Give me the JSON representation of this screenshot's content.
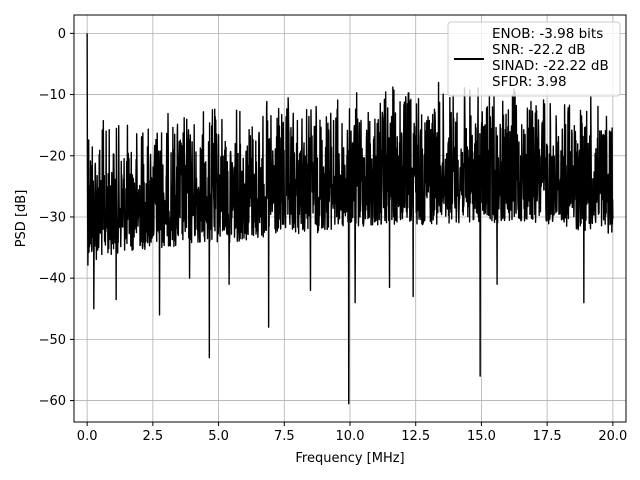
{
  "chart_data": {
    "type": "line",
    "xlabel": "Frequency [MHz]",
    "ylabel": "PSD [dB]",
    "xlim": [
      -0.5,
      20.5
    ],
    "ylim": [
      -63.5,
      3.0
    ],
    "xticks": [
      0.0,
      2.5,
      5.0,
      7.5,
      10.0,
      12.5,
      15.0,
      17.5,
      20.0
    ],
    "xtick_labels": [
      "0.0",
      "2.5",
      "5.0",
      "7.5",
      "10.0",
      "12.5",
      "15.0",
      "17.5",
      "20.0"
    ],
    "yticks": [
      0,
      -10,
      -20,
      -30,
      -40,
      -50,
      -60
    ],
    "ytick_labels": [
      "0",
      "−10",
      "−20",
      "−30",
      "−40",
      "−50",
      "−60"
    ],
    "grid": true,
    "legend_position": "top-right",
    "legend": [
      "ENOB: -3.98 bits",
      "SNR: -22.2 dB",
      "SINAD: -22.22 dB",
      "SFDR: 3.98"
    ],
    "line_color": "#000000",
    "series": [
      {
        "x_start": 0.0,
        "x_end": 20.0,
        "envelope_upper": [
          [
            0.0,
            0.0
          ],
          [
            0.05,
            -4.0
          ],
          [
            0.1,
            -9.0
          ],
          [
            0.3,
            -12.0
          ],
          [
            1.0,
            -14.0
          ],
          [
            3.0,
            -12.0
          ],
          [
            5.0,
            -11.0
          ],
          [
            8.0,
            -10.0
          ],
          [
            10.0,
            -9.0
          ],
          [
            12.5,
            -7.0
          ],
          [
            15.0,
            -8.0
          ],
          [
            17.5,
            -9.0
          ],
          [
            20.0,
            -10.0
          ]
        ],
        "envelope_lower": [
          [
            0.0,
            -38.0
          ],
          [
            1.0,
            -36.0
          ],
          [
            3.0,
            -35.0
          ],
          [
            6.0,
            -34.0
          ],
          [
            10.0,
            -32.0
          ],
          [
            14.0,
            -31.0
          ],
          [
            17.0,
            -31.0
          ],
          [
            20.0,
            -33.0
          ]
        ],
        "dips": [
          [
            0.25,
            -45.0
          ],
          [
            1.1,
            -43.5
          ],
          [
            2.75,
            -46.0
          ],
          [
            3.9,
            -40.0
          ],
          [
            4.65,
            -53.0
          ],
          [
            5.4,
            -41.0
          ],
          [
            6.9,
            -48.0
          ],
          [
            8.5,
            -42.0
          ],
          [
            9.95,
            -60.5
          ],
          [
            10.2,
            -44.0
          ],
          [
            11.5,
            -41.5
          ],
          [
            12.4,
            -43.0
          ],
          [
            14.95,
            -56.0
          ],
          [
            15.6,
            -41.0
          ],
          [
            18.9,
            -44.0
          ]
        ]
      }
    ]
  }
}
